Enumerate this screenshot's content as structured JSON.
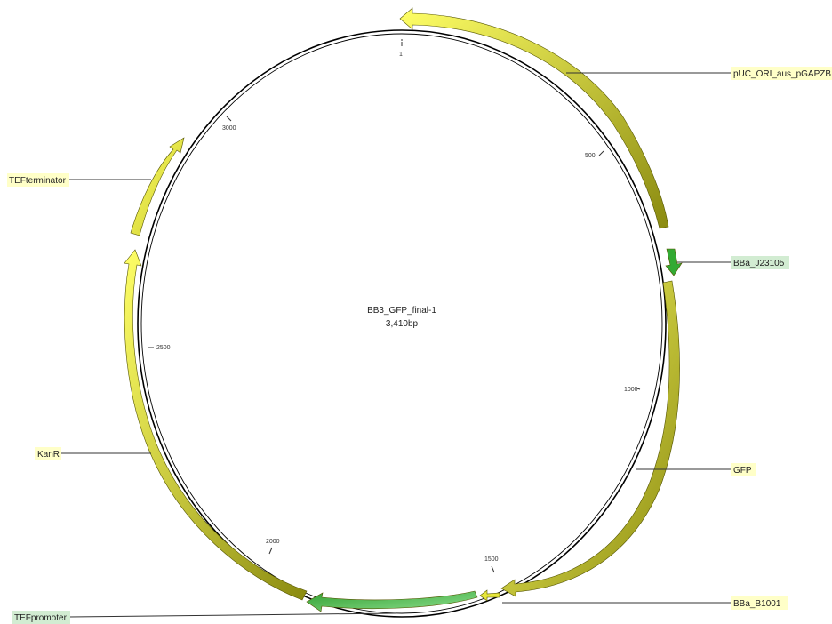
{
  "plasmid": {
    "name": "BB3_GFP_final-1",
    "length_label": "3,410bp",
    "length_bp": 3410
  },
  "ticks": [
    {
      "label": "1"
    },
    {
      "label": "500"
    },
    {
      "label": "1000"
    },
    {
      "label": "1500"
    },
    {
      "label": "2000"
    },
    {
      "label": "2500"
    },
    {
      "label": "3000"
    }
  ],
  "features": [
    {
      "name": "pUC_ORI_aus_pGAPZB",
      "colors": [
        "#ffff66",
        "#8a8a10"
      ],
      "label_bg": "#ffffc8"
    },
    {
      "name": "BBa_J23105",
      "colors": [
        "#33aa33",
        "#33aa33"
      ],
      "label_bg": "#d2ecd2"
    },
    {
      "name": "GFP",
      "colors": [
        "#ffff66",
        "#8a8a10"
      ],
      "label_bg": "#ffffc8"
    },
    {
      "name": "BBa_B1001",
      "colors": [
        "#e6e63a",
        "#e6e63a"
      ],
      "label_bg": "#ffffc8"
    },
    {
      "name": "TEFpromoter",
      "colors": [
        "#33a033",
        "#8ee08e"
      ],
      "label_bg": "#d2ecd2"
    },
    {
      "name": "KanR",
      "colors": [
        "#ffff66",
        "#8a8a10"
      ],
      "label_bg": "#ffffc8"
    },
    {
      "name": "TEFterminator",
      "colors": [
        "#ffff66",
        "#c8c82a"
      ],
      "label_bg": "#ffffc8"
    }
  ]
}
